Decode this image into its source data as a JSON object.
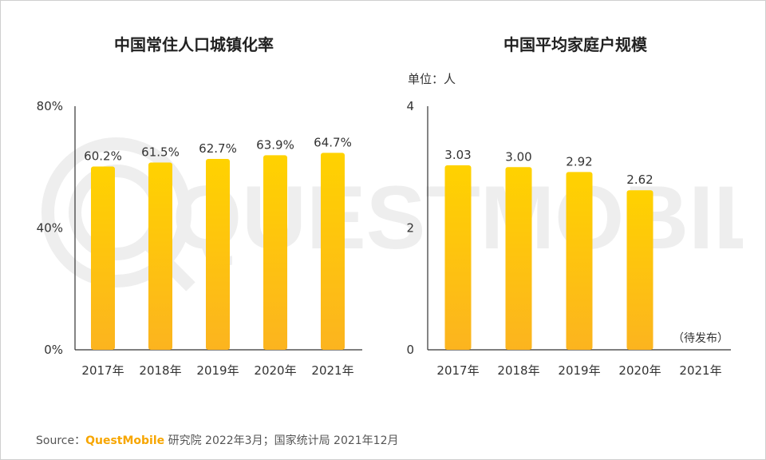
{
  "watermark": {
    "text": "QUESTMOBILE"
  },
  "chart_data": [
    {
      "type": "bar",
      "title": "中国常住人口城镇化率",
      "categories": [
        "2017年",
        "2018年",
        "2019年",
        "2020年",
        "2021年"
      ],
      "values": [
        60.2,
        61.5,
        62.7,
        63.9,
        64.7
      ],
      "value_labels": [
        "60.2%",
        "61.5%",
        "62.7%",
        "63.9%",
        "64.7%"
      ],
      "yticks": [
        0,
        40,
        80
      ],
      "ytick_labels": [
        "0%",
        "40%",
        "80%"
      ],
      "ylim": [
        0,
        80
      ],
      "xlabel": "",
      "ylabel": "",
      "grid": false,
      "legend": "none"
    },
    {
      "type": "bar",
      "title": "中国平均家庭户规模",
      "unit_label": "单位：人",
      "categories": [
        "2017年",
        "2018年",
        "2019年",
        "2020年",
        "2021年"
      ],
      "values": [
        3.03,
        3.0,
        2.92,
        2.62,
        null
      ],
      "value_labels": [
        "3.03",
        "3.00",
        "2.92",
        "2.62",
        "（待发布）"
      ],
      "yticks": [
        0,
        2,
        4
      ],
      "ytick_labels": [
        "0",
        "2",
        "4"
      ],
      "ylim": [
        0,
        4
      ],
      "xlabel": "",
      "ylabel": "",
      "grid": false,
      "legend": "none"
    }
  ],
  "colors": {
    "bar_top": "#ffd200",
    "bar_bottom": "#fcb41f",
    "axis": "#333333",
    "text": "#333333",
    "brand": "#f7a600",
    "watermark": "#eeeeee"
  },
  "source": {
    "prefix": "Source：",
    "brand": "QuestMobile",
    "rest": " 研究院 2022年3月；国家统计局 2021年12月"
  }
}
